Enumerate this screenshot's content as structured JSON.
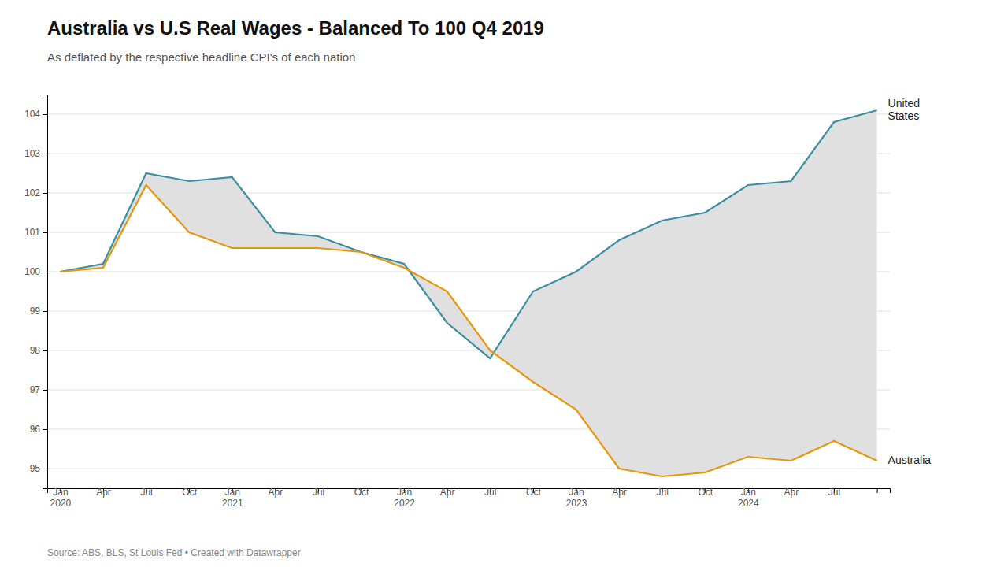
{
  "chart_data": {
    "type": "line",
    "title": "Australia vs U.S Real Wages - Balanced To 100 Q4 2019",
    "subtitle": "As deflated by the respective headline CPI's of each nation",
    "annotations": [
      "Source: ABS, BLS, St Louis Fed • Created with Datawrapper"
    ],
    "color": "#e0e0e0",
    "categories": [
      "Jan\n2020",
      "Apr",
      "Jul",
      "Oct",
      "Jan\n2021",
      "Apr",
      "Jul",
      "Oct",
      "Jan\n2022",
      "Apr",
      "Jul",
      "Oct",
      "Jan\n2023",
      "Apr",
      "Jul",
      "Oct",
      "Jan\n2024",
      "Apr",
      "Jul",
      null
    ],
    "series": [
      {
        "name": "United\nStates",
        "color": "#3a8fa0",
        "values": [
          100.0,
          100.2,
          102.5,
          102.3,
          102.4,
          101.0,
          100.9,
          100.5,
          100.2,
          98.7,
          97.8,
          99.5,
          100.0,
          100.8,
          101.3,
          101.5,
          102.2,
          102.3,
          103.8,
          104.1
        ]
      },
      {
        "name": "Australia",
        "color": "#e8960c",
        "values": [
          100.0,
          100.1,
          102.2,
          101.0,
          100.6,
          100.6,
          100.6,
          100.5,
          100.1,
          99.5,
          98.0,
          97.2,
          96.5,
          95.0,
          94.8,
          94.9,
          95.3,
          95.2,
          95.7,
          95.2
        ]
      }
    ],
    "ylim": [
      94.5,
      104.5
    ],
    "yticks": [
      95,
      96,
      97,
      98,
      99,
      100,
      101,
      102,
      103,
      104
    ],
    "grid": true
  }
}
